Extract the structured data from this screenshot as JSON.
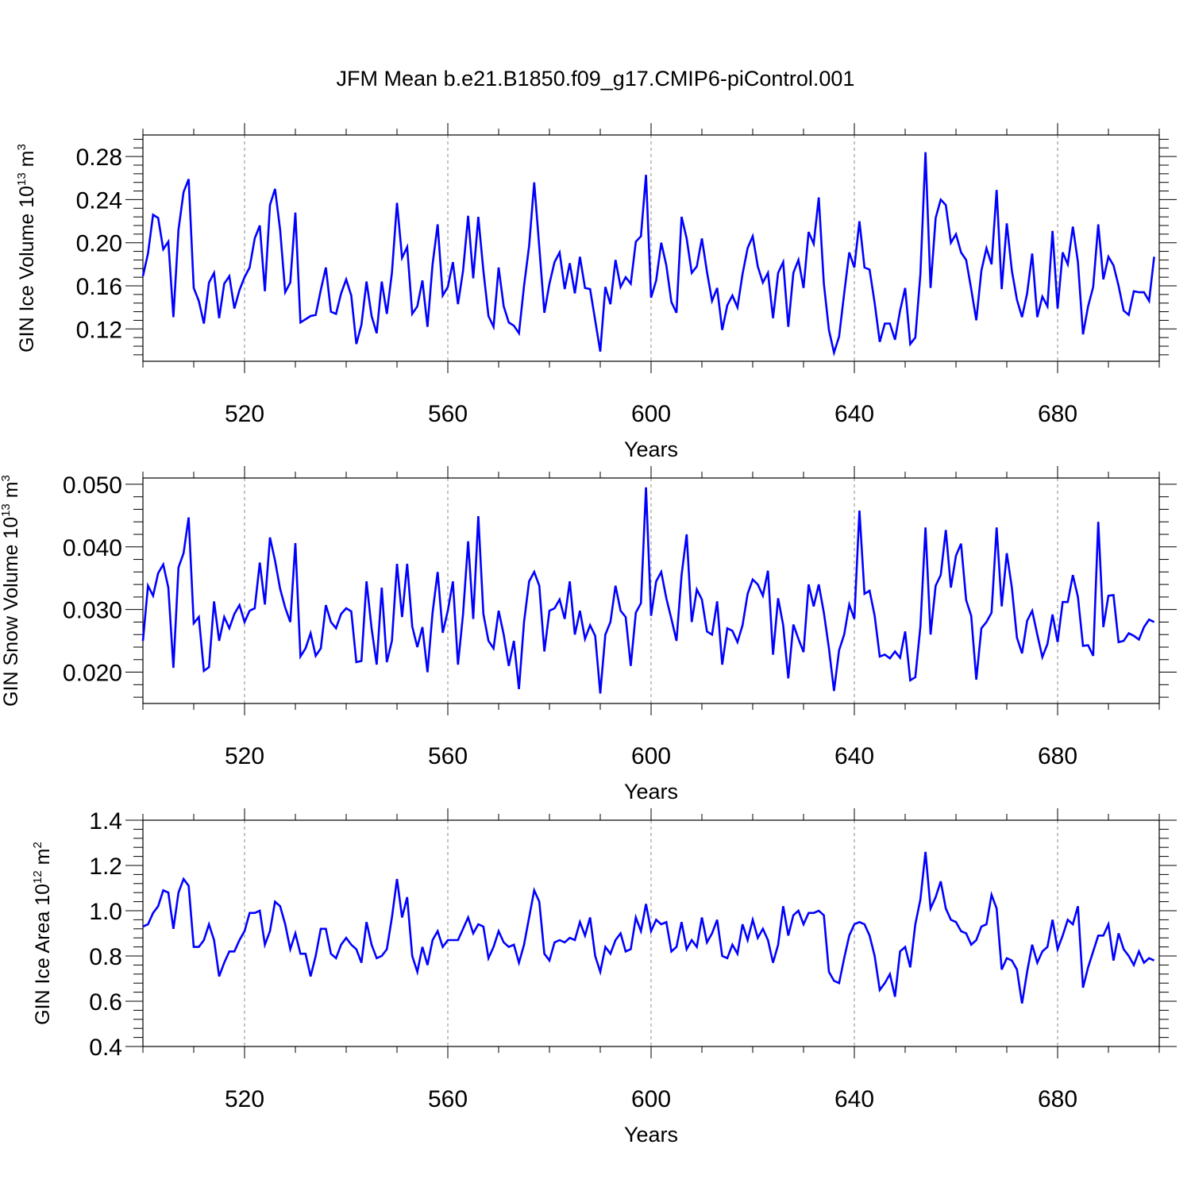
{
  "figure_title": "JFM Mean b.e21.B1850.f09_g17.CMIP6-piControl.001",
  "colors": {
    "line": "#0000ff",
    "axes": "#000000",
    "grid": "#888888"
  },
  "chart_data": [
    {
      "type": "line",
      "ylabel": {
        "main": "GIN Ice Volume 10",
        "exp": "13",
        "unit": " m",
        "unit_exp": "3"
      },
      "xlabel": "Years",
      "xlim": [
        500,
        700
      ],
      "ylim": [
        0.09,
        0.3
      ],
      "xticks": [
        520,
        560,
        600,
        640,
        680
      ],
      "xtick_labels": [
        "520",
        "560",
        "600",
        "640",
        "680"
      ],
      "yticks": [
        0.12,
        0.16,
        0.2,
        0.24,
        0.28
      ],
      "ytick_labels": [
        "0.12",
        "0.16",
        "0.20",
        "0.24",
        "0.28"
      ],
      "grid": "vertical dashed at x ticks",
      "series": [
        {
          "name": "GIN Ice Volume",
          "x_start": 500,
          "x_step": 1,
          "values": [
            0.169,
            0.19,
            0.226,
            0.223,
            0.194,
            0.201,
            0.131,
            0.212,
            0.247,
            0.259,
            0.158,
            0.146,
            0.125,
            0.163,
            0.172,
            0.13,
            0.162,
            0.169,
            0.139,
            0.156,
            0.168,
            0.177,
            0.204,
            0.216,
            0.155,
            0.235,
            0.25,
            0.212,
            0.154,
            0.163,
            0.228,
            0.126,
            0.129,
            0.132,
            0.133,
            0.156,
            0.177,
            0.136,
            0.134,
            0.153,
            0.166,
            0.151,
            0.106,
            0.124,
            0.164,
            0.132,
            0.116,
            0.164,
            0.134,
            0.172,
            0.237,
            0.186,
            0.196,
            0.134,
            0.141,
            0.165,
            0.122,
            0.18,
            0.217,
            0.151,
            0.159,
            0.182,
            0.143,
            0.174,
            0.225,
            0.167,
            0.224,
            0.174,
            0.132,
            0.122,
            0.177,
            0.141,
            0.126,
            0.123,
            0.116,
            0.16,
            0.197,
            0.256,
            0.196,
            0.135,
            0.162,
            0.182,
            0.191,
            0.157,
            0.181,
            0.153,
            0.187,
            0.158,
            0.157,
            0.128,
            0.099,
            0.159,
            0.143,
            0.184,
            0.159,
            0.168,
            0.162,
            0.201,
            0.206,
            0.263,
            0.149,
            0.165,
            0.2,
            0.179,
            0.145,
            0.135,
            0.224,
            0.204,
            0.172,
            0.178,
            0.204,
            0.173,
            0.146,
            0.158,
            0.119,
            0.142,
            0.151,
            0.14,
            0.171,
            0.195,
            0.206,
            0.178,
            0.163,
            0.172,
            0.13,
            0.172,
            0.182,
            0.122,
            0.172,
            0.184,
            0.158,
            0.21,
            0.199,
            0.242,
            0.162,
            0.119,
            0.098,
            0.113,
            0.153,
            0.191,
            0.177,
            0.22,
            0.177,
            0.175,
            0.144,
            0.108,
            0.125,
            0.125,
            0.11,
            0.137,
            0.158,
            0.106,
            0.112,
            0.171,
            0.284,
            0.158,
            0.223,
            0.24,
            0.235,
            0.2,
            0.208,
            0.191,
            0.184,
            0.157,
            0.128,
            0.174,
            0.195,
            0.18,
            0.249,
            0.157,
            0.218,
            0.174,
            0.147,
            0.131,
            0.153,
            0.19,
            0.131,
            0.15,
            0.141,
            0.211,
            0.139,
            0.191,
            0.18,
            0.215,
            0.182,
            0.115,
            0.141,
            0.159,
            0.217,
            0.166,
            0.187,
            0.179,
            0.16,
            0.137,
            0.133,
            0.155,
            0.154,
            0.154,
            0.146,
            0.187
          ]
        }
      ]
    },
    {
      "type": "line",
      "ylabel": {
        "main": "GIN Snow Volume 10",
        "exp": "13",
        "unit": " m",
        "unit_exp": "3"
      },
      "xlabel": "Years",
      "xlim": [
        500,
        700
      ],
      "ylim": [
        0.015,
        0.051
      ],
      "xticks": [
        520,
        560,
        600,
        640,
        680
      ],
      "xtick_labels": [
        "520",
        "560",
        "600",
        "640",
        "680"
      ],
      "yticks": [
        0.02,
        0.03,
        0.04,
        0.05
      ],
      "ytick_labels": [
        "0.020",
        "0.030",
        "0.040",
        "0.050"
      ],
      "grid": "vertical dashed at x ticks",
      "series": [
        {
          "name": "GIN Snow Volume",
          "x_start": 500,
          "x_step": 1,
          "values": [
            0.025,
            0.0338,
            0.0322,
            0.0358,
            0.0372,
            0.0335,
            0.0207,
            0.0367,
            0.039,
            0.0447,
            0.0278,
            0.0288,
            0.0202,
            0.0208,
            0.0313,
            0.025,
            0.0288,
            0.027,
            0.0293,
            0.0307,
            0.028,
            0.0298,
            0.0302,
            0.0375,
            0.0308,
            0.0415,
            0.0378,
            0.0333,
            0.0303,
            0.028,
            0.0406,
            0.0225,
            0.0238,
            0.0262,
            0.0226,
            0.0238,
            0.0307,
            0.028,
            0.027,
            0.0293,
            0.0302,
            0.0297,
            0.0216,
            0.0218,
            0.0345,
            0.027,
            0.0212,
            0.0335,
            0.0216,
            0.025,
            0.0373,
            0.0288,
            0.0373,
            0.0273,
            0.024,
            0.0272,
            0.02,
            0.0295,
            0.036,
            0.0263,
            0.0298,
            0.0345,
            0.0212,
            0.0293,
            0.0409,
            0.0285,
            0.0449,
            0.0293,
            0.025,
            0.0238,
            0.0298,
            0.026,
            0.021,
            0.025,
            0.0173,
            0.028,
            0.0345,
            0.036,
            0.0338,
            0.0233,
            0.0298,
            0.0302,
            0.0316,
            0.0285,
            0.0345,
            0.026,
            0.0298,
            0.0253,
            0.0275,
            0.0258,
            0.0166,
            0.026,
            0.028,
            0.0338,
            0.0298,
            0.0288,
            0.021,
            0.0295,
            0.031,
            0.0495,
            0.029,
            0.0345,
            0.036,
            0.0318,
            0.0285,
            0.025,
            0.0355,
            0.042,
            0.028,
            0.0332,
            0.0316,
            0.0265,
            0.026,
            0.0313,
            0.0212,
            0.027,
            0.0266,
            0.0248,
            0.0275,
            0.0325,
            0.0348,
            0.034,
            0.0322,
            0.0362,
            0.0228,
            0.0318,
            0.0275,
            0.019,
            0.0276,
            0.0253,
            0.0232,
            0.034,
            0.0305,
            0.034,
            0.0295,
            0.0238,
            0.017,
            0.0235,
            0.026,
            0.0308,
            0.0285,
            0.0458,
            0.0325,
            0.033,
            0.029,
            0.0225,
            0.0228,
            0.0222,
            0.0233,
            0.0223,
            0.0265,
            0.0187,
            0.0192,
            0.0273,
            0.0431,
            0.026,
            0.0338,
            0.0355,
            0.0427,
            0.0335,
            0.0386,
            0.0405,
            0.0315,
            0.029,
            0.0188,
            0.027,
            0.028,
            0.0295,
            0.0431,
            0.0305,
            0.039,
            0.0335,
            0.0255,
            0.023,
            0.0282,
            0.0298,
            0.026,
            0.0224,
            0.0245,
            0.0292,
            0.0248,
            0.0312,
            0.0312,
            0.0355,
            0.032,
            0.0242,
            0.0243,
            0.0226,
            0.044,
            0.0272,
            0.0322,
            0.0323,
            0.0248,
            0.025,
            0.0262,
            0.0258,
            0.0252,
            0.0272,
            0.0284,
            0.028
          ]
        }
      ]
    },
    {
      "type": "line",
      "ylabel": {
        "main": "GIN Ice Area 10",
        "exp": "12",
        "unit": " m",
        "unit_exp": "2"
      },
      "xlabel": "Years",
      "xlim": [
        500,
        700
      ],
      "ylim": [
        0.4,
        1.4
      ],
      "xticks": [
        520,
        560,
        600,
        640,
        680
      ],
      "xtick_labels": [
        "520",
        "560",
        "600",
        "640",
        "680"
      ],
      "yticks": [
        0.4,
        0.6,
        0.8,
        1.0,
        1.2,
        1.4
      ],
      "ytick_labels": [
        "0.4",
        "0.6",
        "0.8",
        "1.0",
        "1.2",
        "1.4"
      ],
      "grid": "vertical dashed at x ticks",
      "series": [
        {
          "name": "GIN Ice Area",
          "x_start": 500,
          "x_step": 1,
          "values": [
            0.93,
            0.94,
            0.99,
            1.02,
            1.09,
            1.08,
            0.92,
            1.08,
            1.14,
            1.11,
            0.84,
            0.84,
            0.87,
            0.94,
            0.87,
            0.71,
            0.77,
            0.82,
            0.82,
            0.87,
            0.91,
            0.99,
            0.99,
            1.0,
            0.85,
            0.91,
            1.04,
            1.02,
            0.94,
            0.83,
            0.9,
            0.81,
            0.81,
            0.71,
            0.8,
            0.92,
            0.92,
            0.81,
            0.79,
            0.85,
            0.88,
            0.85,
            0.83,
            0.77,
            0.95,
            0.85,
            0.79,
            0.8,
            0.83,
            0.97,
            1.14,
            0.97,
            1.06,
            0.8,
            0.73,
            0.84,
            0.76,
            0.87,
            0.91,
            0.84,
            0.87,
            0.87,
            0.87,
            0.92,
            0.97,
            0.9,
            0.94,
            0.93,
            0.79,
            0.84,
            0.91,
            0.86,
            0.84,
            0.85,
            0.77,
            0.85,
            0.97,
            1.09,
            1.04,
            0.81,
            0.78,
            0.86,
            0.87,
            0.86,
            0.88,
            0.87,
            0.95,
            0.89,
            0.97,
            0.8,
            0.73,
            0.84,
            0.81,
            0.87,
            0.9,
            0.82,
            0.83,
            0.97,
            0.91,
            1.03,
            0.91,
            0.96,
            0.94,
            0.95,
            0.82,
            0.84,
            0.95,
            0.83,
            0.87,
            0.84,
            0.97,
            0.86,
            0.9,
            0.96,
            0.8,
            0.79,
            0.85,
            0.81,
            0.94,
            0.87,
            0.96,
            0.88,
            0.92,
            0.87,
            0.77,
            0.85,
            1.02,
            0.89,
            0.98,
            1.0,
            0.94,
            0.99,
            0.99,
            1.0,
            0.98,
            0.73,
            0.69,
            0.68,
            0.79,
            0.89,
            0.94,
            0.95,
            0.94,
            0.89,
            0.8,
            0.65,
            0.68,
            0.72,
            0.62,
            0.82,
            0.84,
            0.75,
            0.94,
            1.05,
            1.26,
            1.01,
            1.06,
            1.13,
            1.01,
            0.96,
            0.95,
            0.91,
            0.9,
            0.85,
            0.87,
            0.93,
            0.94,
            1.07,
            1.01,
            0.74,
            0.79,
            0.78,
            0.74,
            0.59,
            0.73,
            0.85,
            0.77,
            0.82,
            0.84,
            0.96,
            0.83,
            0.89,
            0.96,
            0.94,
            1.02,
            0.66,
            0.75,
            0.82,
            0.89,
            0.89,
            0.94,
            0.78,
            0.9,
            0.83,
            0.8,
            0.76,
            0.82,
            0.77,
            0.79,
            0.78
          ]
        }
      ]
    }
  ]
}
